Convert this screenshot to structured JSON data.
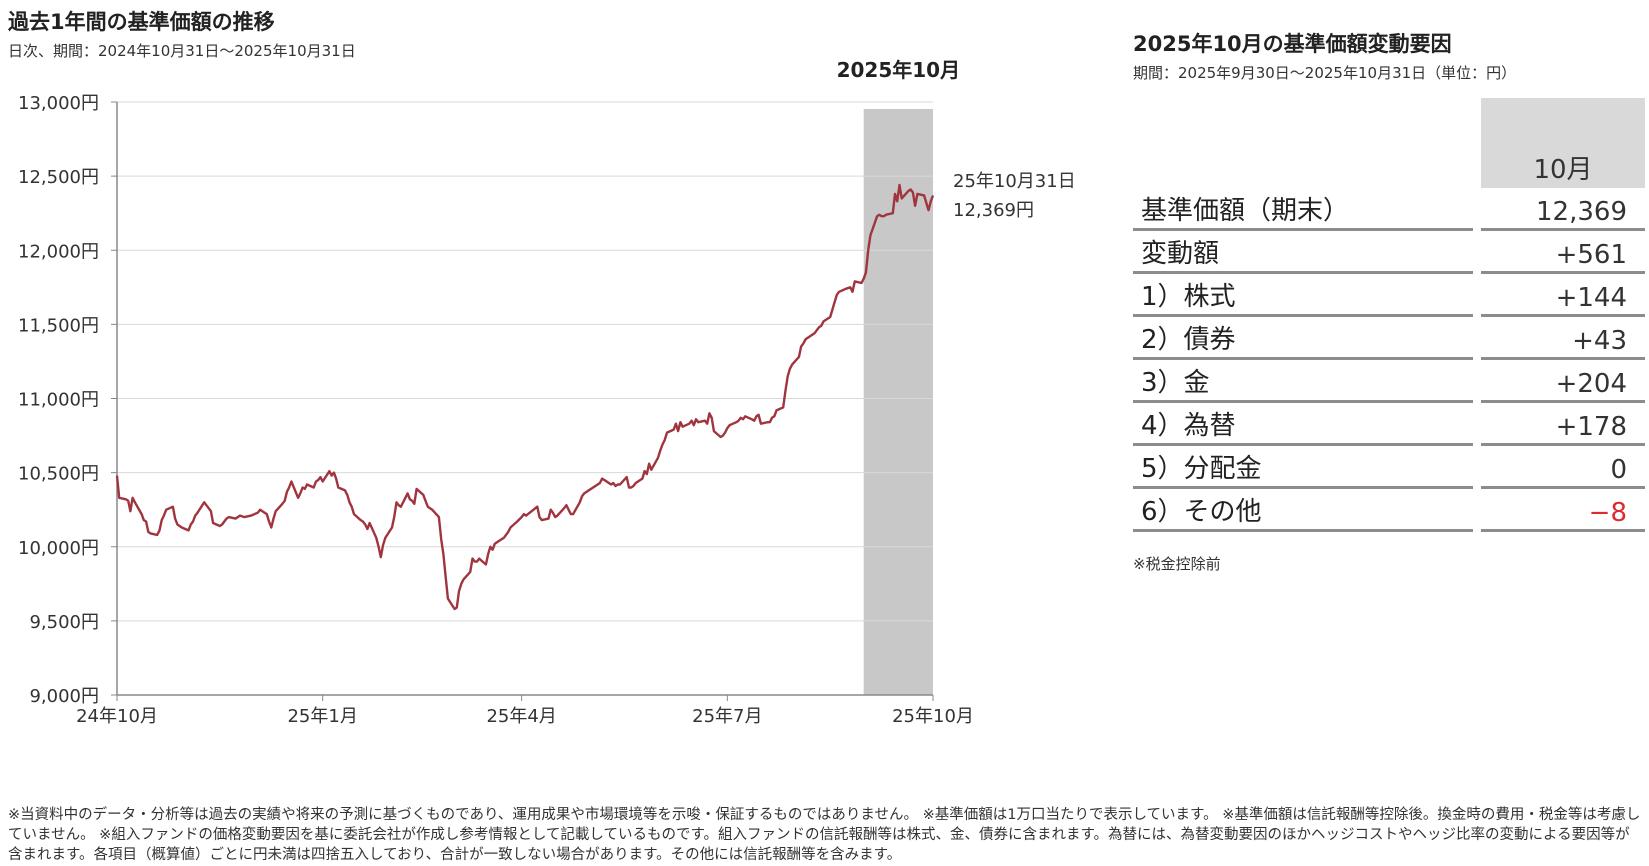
{
  "chart_title": "過去1年間の基準価額の推移",
  "chart_subtitle": "日次、期間：2024年10月31日～2025年10月31日",
  "chart_data": {
    "type": "line",
    "ylim": [
      9000,
      13000
    ],
    "y_ticks": [
      "9,000円",
      "9,500円",
      "10,000円",
      "10,500円",
      "11,000円",
      "11,500円",
      "12,000円",
      "12,500円",
      "13,000円"
    ],
    "y_tick_values": [
      9000,
      9500,
      10000,
      10500,
      11000,
      11500,
      12000,
      12500,
      13000
    ],
    "x_ticks": [
      "24年10月",
      "25年1月",
      "25年4月",
      "25年7月",
      "25年10月"
    ],
    "x_tick_dates": [
      "2024-10-31",
      "2025-01-31",
      "2025-04-30",
      "2025-07-31",
      "2025-10-31"
    ],
    "highlight": {
      "label": "2025年10月",
      "from": "2025-09-30",
      "to": "2025-10-31",
      "color": "#c8c8c8"
    },
    "end_annotation": {
      "date_label": "25年10月31日",
      "value_label": "12,369円"
    },
    "grid": true,
    "line_color": "#a0353f",
    "series": [
      {
        "points": [
          [
            "2024-10-31",
            10480
          ],
          [
            "2024-11-01",
            10330
          ],
          [
            "2024-11-04",
            10320
          ],
          [
            "2024-11-05",
            10310
          ],
          [
            "2024-11-06",
            10240
          ],
          [
            "2024-11-07",
            10330
          ],
          [
            "2024-11-08",
            10300
          ],
          [
            "2024-11-11",
            10220
          ],
          [
            "2024-11-12",
            10180
          ],
          [
            "2024-11-13",
            10170
          ],
          [
            "2024-11-14",
            10100
          ],
          [
            "2024-11-15",
            10090
          ],
          [
            "2024-11-18",
            10080
          ],
          [
            "2024-11-19",
            10110
          ],
          [
            "2024-11-20",
            10180
          ],
          [
            "2024-11-21",
            10210
          ],
          [
            "2024-11-22",
            10250
          ],
          [
            "2024-11-25",
            10270
          ],
          [
            "2024-11-26",
            10190
          ],
          [
            "2024-11-27",
            10150
          ],
          [
            "2024-11-28",
            10140
          ],
          [
            "2024-11-29",
            10130
          ],
          [
            "2024-12-02",
            10110
          ],
          [
            "2024-12-03",
            10150
          ],
          [
            "2024-12-04",
            10170
          ],
          [
            "2024-12-05",
            10210
          ],
          [
            "2024-12-06",
            10230
          ],
          [
            "2024-12-09",
            10300
          ],
          [
            "2024-12-10",
            10280
          ],
          [
            "2024-12-11",
            10260
          ],
          [
            "2024-12-12",
            10240
          ],
          [
            "2024-12-13",
            10160
          ],
          [
            "2024-12-16",
            10140
          ],
          [
            "2024-12-17",
            10150
          ],
          [
            "2024-12-18",
            10170
          ],
          [
            "2024-12-19",
            10190
          ],
          [
            "2024-12-20",
            10200
          ],
          [
            "2024-12-23",
            10190
          ],
          [
            "2024-12-24",
            10200
          ],
          [
            "2024-12-25",
            10210
          ],
          [
            "2024-12-26",
            10205
          ],
          [
            "2024-12-27",
            10200
          ],
          [
            "2024-12-30",
            10210
          ],
          [
            "2025-01-02",
            10230
          ],
          [
            "2025-01-03",
            10250
          ],
          [
            "2025-01-06",
            10220
          ],
          [
            "2025-01-07",
            10170
          ],
          [
            "2025-01-08",
            10130
          ],
          [
            "2025-01-09",
            10190
          ],
          [
            "2025-01-10",
            10240
          ],
          [
            "2025-01-13",
            10290
          ],
          [
            "2025-01-14",
            10310
          ],
          [
            "2025-01-15",
            10370
          ],
          [
            "2025-01-16",
            10400
          ],
          [
            "2025-01-17",
            10440
          ],
          [
            "2025-01-20",
            10330
          ],
          [
            "2025-01-21",
            10360
          ],
          [
            "2025-01-22",
            10400
          ],
          [
            "2025-01-23",
            10390
          ],
          [
            "2025-01-24",
            10420
          ],
          [
            "2025-01-27",
            10400
          ],
          [
            "2025-01-28",
            10440
          ],
          [
            "2025-01-29",
            10450
          ],
          [
            "2025-01-30",
            10470
          ],
          [
            "2025-01-31",
            10440
          ],
          [
            "2025-02-03",
            10510
          ],
          [
            "2025-02-04",
            10480
          ],
          [
            "2025-02-05",
            10500
          ],
          [
            "2025-02-06",
            10460
          ],
          [
            "2025-02-07",
            10400
          ],
          [
            "2025-02-10",
            10380
          ],
          [
            "2025-02-11",
            10350
          ],
          [
            "2025-02-12",
            10300
          ],
          [
            "2025-02-13",
            10270
          ],
          [
            "2025-02-14",
            10220
          ],
          [
            "2025-02-17",
            10180
          ],
          [
            "2025-02-18",
            10170
          ],
          [
            "2025-02-19",
            10150
          ],
          [
            "2025-02-20",
            10120
          ],
          [
            "2025-02-21",
            10160
          ],
          [
            "2025-02-24",
            10060
          ],
          [
            "2025-02-25",
            10000
          ],
          [
            "2025-02-26",
            9930
          ],
          [
            "2025-02-27",
            10010
          ],
          [
            "2025-02-28",
            10060
          ],
          [
            "2025-03-03",
            10130
          ],
          [
            "2025-03-04",
            10200
          ],
          [
            "2025-03-05",
            10300
          ],
          [
            "2025-03-06",
            10280
          ],
          [
            "2025-03-07",
            10270
          ],
          [
            "2025-03-10",
            10360
          ],
          [
            "2025-03-11",
            10320
          ],
          [
            "2025-03-12",
            10310
          ],
          [
            "2025-03-13",
            10290
          ],
          [
            "2025-03-14",
            10390
          ],
          [
            "2025-03-17",
            10350
          ],
          [
            "2025-03-18",
            10310
          ],
          [
            "2025-03-19",
            10270
          ],
          [
            "2025-03-21",
            10250
          ],
          [
            "2025-03-24",
            10200
          ],
          [
            "2025-03-25",
            10050
          ],
          [
            "2025-03-26",
            9950
          ],
          [
            "2025-03-27",
            9800
          ],
          [
            "2025-03-28",
            9650
          ],
          [
            "2025-03-31",
            9580
          ],
          [
            "2025-04-01",
            9590
          ],
          [
            "2025-04-02",
            9700
          ],
          [
            "2025-04-03",
            9750
          ],
          [
            "2025-04-04",
            9780
          ],
          [
            "2025-04-07",
            9830
          ],
          [
            "2025-04-08",
            9920
          ],
          [
            "2025-04-09",
            9900
          ],
          [
            "2025-04-10",
            9900
          ],
          [
            "2025-04-11",
            9920
          ],
          [
            "2025-04-14",
            9880
          ],
          [
            "2025-04-15",
            9950
          ],
          [
            "2025-04-16",
            10000
          ],
          [
            "2025-04-17",
            9980
          ],
          [
            "2025-04-18",
            10020
          ],
          [
            "2025-04-21",
            10050
          ],
          [
            "2025-04-22",
            10060
          ],
          [
            "2025-04-23",
            10080
          ],
          [
            "2025-04-24",
            10100
          ],
          [
            "2025-04-25",
            10130
          ],
          [
            "2025-04-28",
            10170
          ],
          [
            "2025-04-30",
            10200
          ],
          [
            "2025-05-01",
            10220
          ],
          [
            "2025-05-02",
            10210
          ],
          [
            "2025-05-07",
            10270
          ],
          [
            "2025-05-08",
            10200
          ],
          [
            "2025-05-09",
            10180
          ],
          [
            "2025-05-12",
            10190
          ],
          [
            "2025-05-13",
            10250
          ],
          [
            "2025-05-14",
            10230
          ],
          [
            "2025-05-15",
            10200
          ],
          [
            "2025-05-16",
            10210
          ],
          [
            "2025-05-19",
            10260
          ],
          [
            "2025-05-20",
            10280
          ],
          [
            "2025-05-21",
            10250
          ],
          [
            "2025-05-22",
            10220
          ],
          [
            "2025-05-23",
            10220
          ],
          [
            "2025-05-26",
            10300
          ],
          [
            "2025-05-27",
            10340
          ],
          [
            "2025-05-28",
            10360
          ],
          [
            "2025-05-29",
            10370
          ],
          [
            "2025-05-30",
            10380
          ],
          [
            "2025-06-02",
            10410
          ],
          [
            "2025-06-03",
            10420
          ],
          [
            "2025-06-04",
            10430
          ],
          [
            "2025-06-05",
            10460
          ],
          [
            "2025-06-06",
            10450
          ],
          [
            "2025-06-09",
            10420
          ],
          [
            "2025-06-10",
            10430
          ],
          [
            "2025-06-11",
            10410
          ],
          [
            "2025-06-12",
            10420
          ],
          [
            "2025-06-13",
            10420
          ],
          [
            "2025-06-16",
            10470
          ],
          [
            "2025-06-17",
            10400
          ],
          [
            "2025-06-18",
            10400
          ],
          [
            "2025-06-19",
            10410
          ],
          [
            "2025-06-20",
            10430
          ],
          [
            "2025-06-23",
            10460
          ],
          [
            "2025-06-24",
            10510
          ],
          [
            "2025-06-25",
            10490
          ],
          [
            "2025-06-26",
            10560
          ],
          [
            "2025-06-27",
            10520
          ],
          [
            "2025-06-30",
            10600
          ],
          [
            "2025-07-01",
            10650
          ],
          [
            "2025-07-02",
            10690
          ],
          [
            "2025-07-03",
            10720
          ],
          [
            "2025-07-04",
            10770
          ],
          [
            "2025-07-07",
            10790
          ],
          [
            "2025-07-08",
            10830
          ],
          [
            "2025-07-09",
            10780
          ],
          [
            "2025-07-10",
            10840
          ],
          [
            "2025-07-11",
            10810
          ],
          [
            "2025-07-14",
            10830
          ],
          [
            "2025-07-15",
            10850
          ],
          [
            "2025-07-16",
            10820
          ],
          [
            "2025-07-17",
            10860
          ],
          [
            "2025-07-18",
            10840
          ],
          [
            "2025-07-21",
            10850
          ],
          [
            "2025-07-22",
            10830
          ],
          [
            "2025-07-23",
            10900
          ],
          [
            "2025-07-24",
            10870
          ],
          [
            "2025-07-25",
            10780
          ],
          [
            "2025-07-28",
            10740
          ],
          [
            "2025-07-29",
            10750
          ],
          [
            "2025-07-30",
            10770
          ],
          [
            "2025-07-31",
            10800
          ],
          [
            "2025-08-01",
            10820
          ],
          [
            "2025-08-04",
            10840
          ],
          [
            "2025-08-05",
            10850
          ],
          [
            "2025-08-06",
            10870
          ],
          [
            "2025-08-07",
            10860
          ],
          [
            "2025-08-08",
            10880
          ],
          [
            "2025-08-11",
            10860
          ],
          [
            "2025-08-12",
            10850
          ],
          [
            "2025-08-13",
            10880
          ],
          [
            "2025-08-14",
            10890
          ],
          [
            "2025-08-15",
            10830
          ],
          [
            "2025-08-18",
            10840
          ],
          [
            "2025-08-19",
            10840
          ],
          [
            "2025-08-20",
            10870
          ],
          [
            "2025-08-21",
            10880
          ],
          [
            "2025-08-22",
            10920
          ],
          [
            "2025-08-25",
            10940
          ],
          [
            "2025-08-26",
            11050
          ],
          [
            "2025-08-27",
            11150
          ],
          [
            "2025-08-28",
            11200
          ],
          [
            "2025-08-29",
            11230
          ],
          [
            "2025-09-01",
            11280
          ],
          [
            "2025-09-02",
            11350
          ],
          [
            "2025-09-03",
            11370
          ],
          [
            "2025-09-04",
            11400
          ],
          [
            "2025-09-05",
            11410
          ],
          [
            "2025-09-08",
            11440
          ],
          [
            "2025-09-09",
            11460
          ],
          [
            "2025-09-10",
            11480
          ],
          [
            "2025-09-11",
            11490
          ],
          [
            "2025-09-12",
            11520
          ],
          [
            "2025-09-15",
            11550
          ],
          [
            "2025-09-16",
            11600
          ],
          [
            "2025-09-17",
            11650
          ],
          [
            "2025-09-18",
            11700
          ],
          [
            "2025-09-19",
            11720
          ],
          [
            "2025-09-22",
            11740
          ],
          [
            "2025-09-24",
            11750
          ],
          [
            "2025-09-25",
            11720
          ],
          [
            "2025-09-26",
            11790
          ],
          [
            "2025-09-29",
            11780
          ],
          [
            "2025-09-30",
            11808
          ],
          [
            "2025-10-01",
            11850
          ],
          [
            "2025-10-02",
            12000
          ],
          [
            "2025-10-03",
            12100
          ],
          [
            "2025-10-06",
            12230
          ],
          [
            "2025-10-07",
            12240
          ],
          [
            "2025-10-08",
            12230
          ],
          [
            "2025-10-09",
            12230
          ],
          [
            "2025-10-10",
            12240
          ],
          [
            "2025-10-13",
            12250
          ],
          [
            "2025-10-14",
            12380
          ],
          [
            "2025-10-15",
            12330
          ],
          [
            "2025-10-16",
            12440
          ],
          [
            "2025-10-17",
            12350
          ],
          [
            "2025-10-20",
            12400
          ],
          [
            "2025-10-21",
            12410
          ],
          [
            "2025-10-22",
            12390
          ],
          [
            "2025-10-23",
            12300
          ],
          [
            "2025-10-24",
            12380
          ],
          [
            "2025-10-27",
            12370
          ],
          [
            "2025-10-28",
            12320
          ],
          [
            "2025-10-29",
            12270
          ],
          [
            "2025-10-30",
            12330
          ],
          [
            "2025-10-31",
            12369
          ]
        ]
      }
    ]
  },
  "table": {
    "title": "2025年10月の基準価額変動要因",
    "subtitle": "期間：2025年9月30日～2025年10月31日（単位：円）",
    "month_header": "10月",
    "header_color": "#d9d9d9",
    "negative_color": "#e0282f",
    "rows": [
      {
        "label": "基準価額（期末）",
        "value": "12,369",
        "negative": false
      },
      {
        "label": "変動額",
        "value": "+561",
        "negative": false
      },
      {
        "label": "1）株式",
        "value": "+144",
        "negative": false
      },
      {
        "label": "2）債券",
        "value": "+43",
        "negative": false
      },
      {
        "label": "3）金",
        "value": "+204",
        "negative": false
      },
      {
        "label": "4）為替",
        "value": "+178",
        "negative": false
      },
      {
        "label": "5）分配金",
        "value": "0",
        "negative": false
      },
      {
        "label": "6）その他",
        "value": "−8",
        "negative": true
      }
    ],
    "note": "※税金控除前"
  },
  "footnote": "※当資料中のデータ・分析等は過去の実績や将来の予測に基づくものであり、運用成果や市場環境等を示唆・保証するものではありません。 ※基準価額は1万口当たりで表示しています。 ※基準価額は信託報酬等控除後。換金時の費用・税金等は考慮していません。 ※組入ファンドの価格変動要因を基に委託会社が作成し参考情報として記載しているものです。組入ファンドの信託報酬等は株式、金、債券に含まれます。為替には、為替変動要因のほかヘッジコストやヘッジ比率の変動による要因等が含まれます。各項目（概算値）ごとに円未満は四捨五入しており、合計が一致しない場合があります。その他には信託報酬等を含みます。"
}
